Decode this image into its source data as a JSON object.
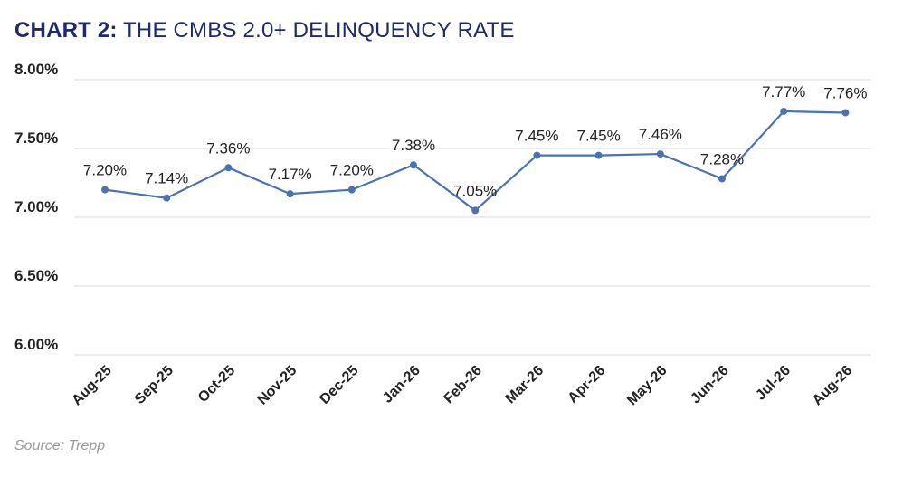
{
  "title_prefix": "CHART 2:",
  "title_rest": "THE CMBS 2.0+ DELINQUENCY RATE",
  "source": "Source: Trepp",
  "chart_data": {
    "type": "line",
    "title": "CHART 2: THE CMBS 2.0+ DELINQUENCY RATE",
    "categories": [
      "Aug-25",
      "Sep-25",
      "Oct-25",
      "Nov-25",
      "Dec-25",
      "Jan-26",
      "Feb-26",
      "Mar-26",
      "Apr-26",
      "May-26",
      "Jun-26",
      "Jul-26",
      "Aug-26"
    ],
    "values": [
      7.2,
      7.14,
      7.36,
      7.17,
      7.2,
      7.38,
      7.05,
      7.45,
      7.45,
      7.46,
      7.28,
      7.77,
      7.76
    ],
    "data_labels": [
      "7.20%",
      "7.14%",
      "7.36%",
      "7.17%",
      "7.20%",
      "7.38%",
      "7.05%",
      "7.45%",
      "7.45%",
      "7.46%",
      "7.28%",
      "7.77%",
      "7.76%"
    ],
    "ylim": [
      6.0,
      8.0
    ],
    "yticks": [
      8.0,
      7.5,
      7.0,
      6.5,
      6.0
    ],
    "ytick_labels": [
      "8.00%",
      "7.50%",
      "7.00%",
      "6.50%",
      "6.00%"
    ],
    "xlabel": "",
    "ylabel": "",
    "grid": true,
    "line_color": "#4a72b0",
    "grid_color": "#d9d9d9"
  }
}
